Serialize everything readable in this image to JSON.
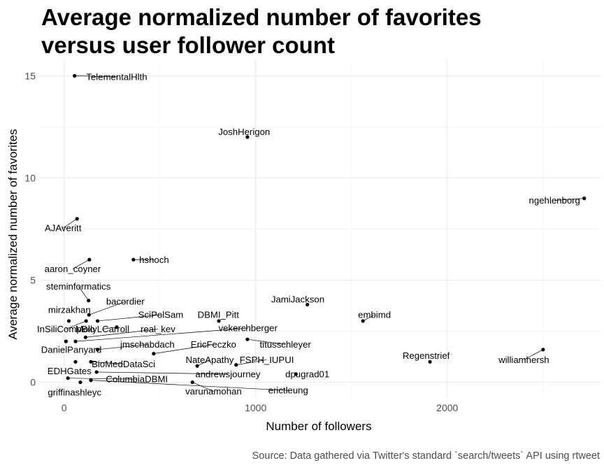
{
  "chart_data": {
    "type": "scatter",
    "title": "Average normalized number of favorites versus user follower count",
    "xlabel": "Number of followers",
    "ylabel": "Average normalized number of favorites",
    "caption": "Source: Data gathered via Twitter's standard `search/tweets` API using rtweet",
    "xlim": [
      -130,
      2800
    ],
    "ylim": [
      -0.7,
      15.8
    ],
    "x_ticks": [
      0,
      1000,
      2000
    ],
    "x_tick_labels": [
      "0",
      "1000",
      "2000"
    ],
    "y_ticks": [
      0,
      5,
      10,
      15
    ],
    "y_tick_labels": [
      "0",
      "5",
      "10",
      "15"
    ],
    "grid": true,
    "legend": "none",
    "points": [
      {
        "label": "TelementalHlth",
        "x": 55,
        "y": 15.0,
        "label_x": 275,
        "label_y": 14.95
      },
      {
        "label": "JoshHerigon",
        "x": 957,
        "y": 12.0,
        "label_x": 940,
        "label_y": 12.25
      },
      {
        "label": "ngehlenborg",
        "x": 2715,
        "y": 9.0,
        "label_x": 2560,
        "label_y": 8.9
      },
      {
        "label": "AJAveritt",
        "x": 68,
        "y": 8.0,
        "label_x": -5,
        "label_y": 7.55
      },
      {
        "label": "hshoch",
        "x": 362,
        "y": 6.0,
        "label_x": 470,
        "label_y": 6.0
      },
      {
        "label": "aaron_coyner",
        "x": 132,
        "y": 6.0,
        "label_x": 45,
        "label_y": 5.55
      },
      {
        "label": "steminformatics",
        "x": 128,
        "y": 4.0,
        "label_x": 75,
        "label_y": 4.7
      },
      {
        "label": "bacordier",
        "x": 130,
        "y": 3.3,
        "label_x": 320,
        "label_y": 3.95
      },
      {
        "label": "mirzakhan",
        "x": 25,
        "y": 3.0,
        "label_x": 28,
        "label_y": 3.55
      },
      {
        "label": "JamiJackson",
        "x": 1270,
        "y": 3.8,
        "label_x": 1220,
        "label_y": 4.05
      },
      {
        "label": "embimd",
        "x": 1560,
        "y": 3.0,
        "label_x": 1620,
        "label_y": 3.3
      },
      {
        "label": "SciPolSam",
        "x": 175,
        "y": 3.0,
        "label_x": 505,
        "label_y": 3.3
      },
      {
        "label": "DBMI_Pitt",
        "x": 808,
        "y": 3.0,
        "label_x": 805,
        "label_y": 3.3
      },
      {
        "label": "InSiliCompBio",
        "x": 115,
        "y": 3.0,
        "label_x": 10,
        "label_y": 2.6
      },
      {
        "label": "MollyLCarroll",
        "x": 275,
        "y": 2.7,
        "label_x": 200,
        "label_y": 2.6
      },
      {
        "label": "real_kev",
        "x": 112,
        "y": 2.2,
        "label_x": 490,
        "label_y": 2.6
      },
      {
        "label": "vekerchberger",
        "x": 60,
        "y": 2.0,
        "label_x": 960,
        "label_y": 2.65
      },
      {
        "label": "DanielPanyard",
        "x": 10,
        "y": 2.0,
        "label_x": 38,
        "label_y": 1.6
      },
      {
        "label": "jmschabdach",
        "x": 175,
        "y": 1.6,
        "label_x": 435,
        "label_y": 1.85
      },
      {
        "label": "EricFeczko",
        "x": 468,
        "y": 1.4,
        "label_x": 780,
        "label_y": 1.85
      },
      {
        "label": "titusschleyer",
        "x": 957,
        "y": 2.1,
        "label_x": 1155,
        "label_y": 1.85
      },
      {
        "label": "NateApathy",
        "x": 695,
        "y": 0.8,
        "label_x": 760,
        "label_y": 1.1
      },
      {
        "label": "FSPH_IUPUI",
        "x": 898,
        "y": 0.85,
        "label_x": 1058,
        "label_y": 1.1
      },
      {
        "label": "BioMedDataSci",
        "x": 140,
        "y": 1.0,
        "label_x": 310,
        "label_y": 0.9
      },
      {
        "label": "EDHGates",
        "x": 60,
        "y": 1.0,
        "label_x": 28,
        "label_y": 0.55
      },
      {
        "label": "andrewsjourney",
        "x": 170,
        "y": 0.5,
        "label_x": 855,
        "label_y": 0.4
      },
      {
        "label": "dpugrad01",
        "x": 1210,
        "y": 0.4,
        "label_x": 1270,
        "label_y": 0.4
      },
      {
        "label": "ColumbiaDBMI",
        "x": 20,
        "y": 0.2,
        "label_x": 380,
        "label_y": 0.15
      },
      {
        "label": "varunamohan",
        "x": 670,
        "y": 0.0,
        "label_x": 780,
        "label_y": -0.45
      },
      {
        "label": "erictleung",
        "x": 140,
        "y": 0.1,
        "label_x": 1170,
        "label_y": -0.4
      },
      {
        "label": "griffinashleyc",
        "x": 85,
        "y": 0.0,
        "label_x": 55,
        "label_y": -0.5
      },
      {
        "label": "Regenstrief",
        "x": 1910,
        "y": 1.0,
        "label_x": 1890,
        "label_y": 1.3
      },
      {
        "label": "williamhersh",
        "x": 2500,
        "y": 1.6,
        "label_x": 2400,
        "label_y": 1.1
      }
    ]
  }
}
